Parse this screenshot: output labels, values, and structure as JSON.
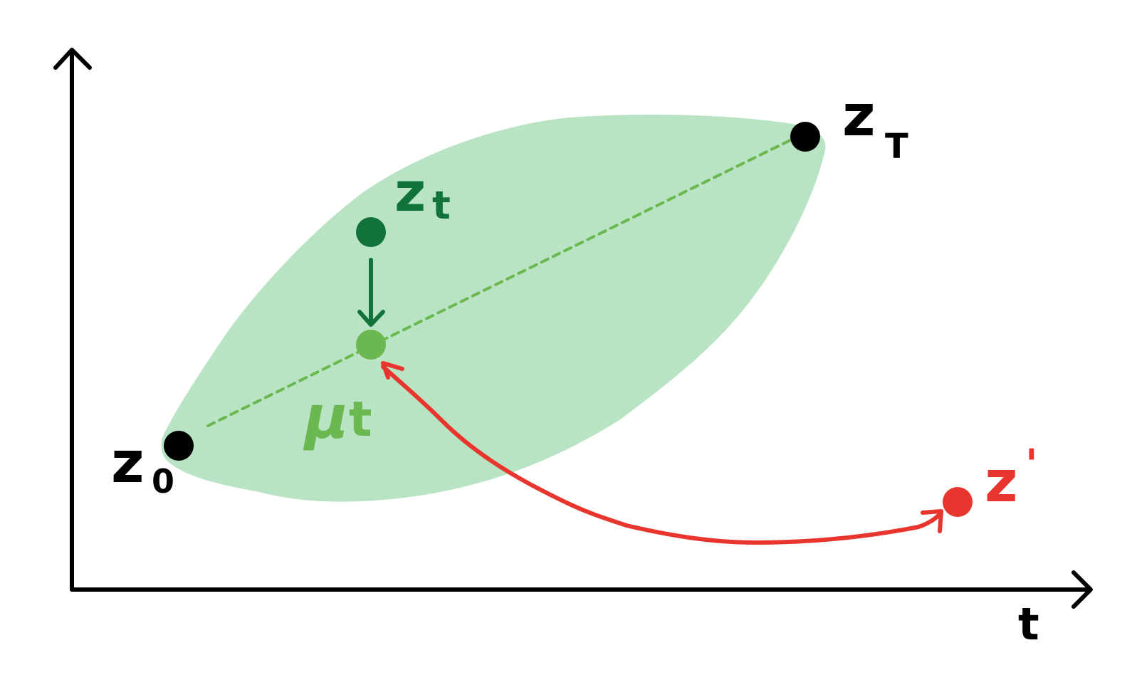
{
  "axes": {
    "x_label": "t"
  },
  "labels": {
    "z0_main": "z",
    "z0_sub": "0",
    "zT_main": "z",
    "zT_sub": "T",
    "zt_main": "z",
    "zt_sub": "t",
    "mut_main": "μ",
    "mut_sub": "t",
    "zprime_main": "z",
    "zprime_mark": "'"
  },
  "colors": {
    "axis": "#000000",
    "region_fill": "#b8e4c4",
    "dashed_line": "#6ab84f",
    "z0_point": "#000000",
    "zT_point": "#000000",
    "zt_point": "#12733a",
    "zt_arrow": "#12733a",
    "mut_point": "#6ab84f",
    "zprime_point": "#e8362f",
    "zprime_arrow": "#e8362f"
  }
}
